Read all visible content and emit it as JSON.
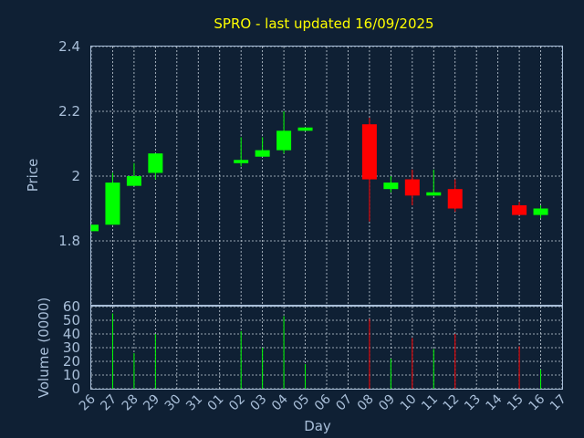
{
  "title": "SPRO - last updated 16/09/2025",
  "colors": {
    "background": "#0f2034",
    "up": "#00ff00",
    "down": "#ff0000",
    "title": "#ffff00",
    "axis": "#a9bfd9",
    "grid": "#c8d2dc"
  },
  "chart_data": [
    {
      "type": "candlestick",
      "ylabel": "Price",
      "ylim": [
        1.8,
        2.4
      ],
      "yticks": [
        "1.8",
        "2",
        "2.2",
        "2.4"
      ],
      "grid": true,
      "x": [
        "26",
        "27",
        "28",
        "29",
        "30",
        "31",
        "01",
        "02",
        "03",
        "04",
        "05",
        "06",
        "07",
        "08",
        "09",
        "10",
        "11",
        "12",
        "13",
        "14",
        "15",
        "16",
        "17"
      ],
      "candles": [
        {
          "day": "26",
          "open": 1.83,
          "high": 1.85,
          "low": 1.83,
          "close": 1.85
        },
        {
          "day": "27",
          "open": 1.85,
          "high": 2.01,
          "low": 1.85,
          "close": 1.98
        },
        {
          "day": "28",
          "open": 1.97,
          "high": 2.04,
          "low": 1.97,
          "close": 2.0
        },
        {
          "day": "29",
          "open": 2.01,
          "high": 2.07,
          "low": 1.99,
          "close": 2.07
        },
        {
          "day": "02",
          "open": 2.04,
          "high": 2.12,
          "low": 2.03,
          "close": 2.05
        },
        {
          "day": "03",
          "open": 2.06,
          "high": 2.12,
          "low": 2.06,
          "close": 2.08
        },
        {
          "day": "04",
          "open": 2.08,
          "high": 2.2,
          "low": 2.07,
          "close": 2.14
        },
        {
          "day": "05",
          "open": 2.14,
          "high": 2.15,
          "low": 2.14,
          "close": 2.15
        },
        {
          "day": "08",
          "open": 2.16,
          "high": 2.18,
          "low": 1.86,
          "close": 1.99
        },
        {
          "day": "09",
          "open": 1.96,
          "high": 2.0,
          "low": 1.95,
          "close": 1.98
        },
        {
          "day": "10",
          "open": 1.99,
          "high": 2.02,
          "low": 1.91,
          "close": 1.94
        },
        {
          "day": "11",
          "open": 1.94,
          "high": 2.02,
          "low": 1.94,
          "close": 1.95
        },
        {
          "day": "12",
          "open": 1.96,
          "high": 1.99,
          "low": 1.89,
          "close": 1.9
        },
        {
          "day": "15",
          "open": 1.91,
          "high": 1.92,
          "low": 1.88,
          "close": 1.88
        },
        {
          "day": "16",
          "open": 1.88,
          "high": 1.91,
          "low": 1.87,
          "close": 1.9
        }
      ]
    },
    {
      "type": "bar",
      "ylabel": "Volume (0000)",
      "xlabel": "Day",
      "ylim": [
        0,
        60
      ],
      "yticks": [
        "0",
        "10",
        "20",
        "30",
        "40",
        "50",
        "60"
      ],
      "grid": true,
      "bars": [
        {
          "day": "27",
          "value": 55,
          "direction": "up"
        },
        {
          "day": "28",
          "value": 26,
          "direction": "up"
        },
        {
          "day": "29",
          "value": 40,
          "direction": "up"
        },
        {
          "day": "02",
          "value": 42,
          "direction": "up"
        },
        {
          "day": "03",
          "value": 30,
          "direction": "up"
        },
        {
          "day": "04",
          "value": 53,
          "direction": "up"
        },
        {
          "day": "05",
          "value": 18,
          "direction": "up"
        },
        {
          "day": "08",
          "value": 51,
          "direction": "down"
        },
        {
          "day": "09",
          "value": 22,
          "direction": "up"
        },
        {
          "day": "10",
          "value": 37,
          "direction": "down"
        },
        {
          "day": "11",
          "value": 29,
          "direction": "up"
        },
        {
          "day": "12",
          "value": 40,
          "direction": "down"
        },
        {
          "day": "15",
          "value": 31,
          "direction": "down"
        },
        {
          "day": "16",
          "value": 14,
          "direction": "up"
        }
      ]
    }
  ]
}
